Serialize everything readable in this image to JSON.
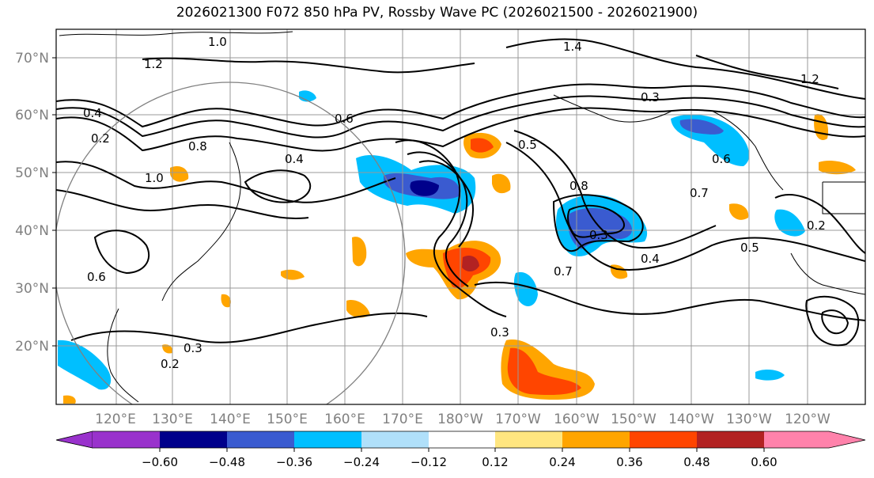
{
  "title": "2026021300 F072 850 hPa PV, Rossby Wave PC (2026021500 - 2026021900)",
  "lat_labels": [
    "70°N",
    "60°N",
    "50°N",
    "40°N",
    "30°N",
    "20°N"
  ],
  "lon_labels": [
    "120°E",
    "130°E",
    "140°E",
    "150°E",
    "160°E",
    "170°E",
    "180°W",
    "170°W",
    "160°W",
    "150°W",
    "140°W",
    "130°W",
    "120°W"
  ],
  "colorbar": {
    "ticks": [
      "−0.60",
      "−0.48",
      "−0.36",
      "−0.24",
      "−0.12",
      "0.12",
      "0.24",
      "0.36",
      "0.48",
      "0.60"
    ],
    "colors": [
      "#9932cc",
      "#00008b",
      "#3a5bd0",
      "#00bfff",
      "#b0e0fa",
      "#ffffff",
      "#ffe680",
      "#ffa500",
      "#ff4500",
      "#b22222",
      "#ff82ab"
    ]
  },
  "contour_labels": [
    "1.0",
    "1.2",
    "0.8",
    "1.4",
    "0.2",
    "0.4",
    "0.6",
    "0.5",
    "0.7",
    "0.3"
  ],
  "colors": {
    "label_gray": "#808080",
    "grid": "#999999"
  }
}
